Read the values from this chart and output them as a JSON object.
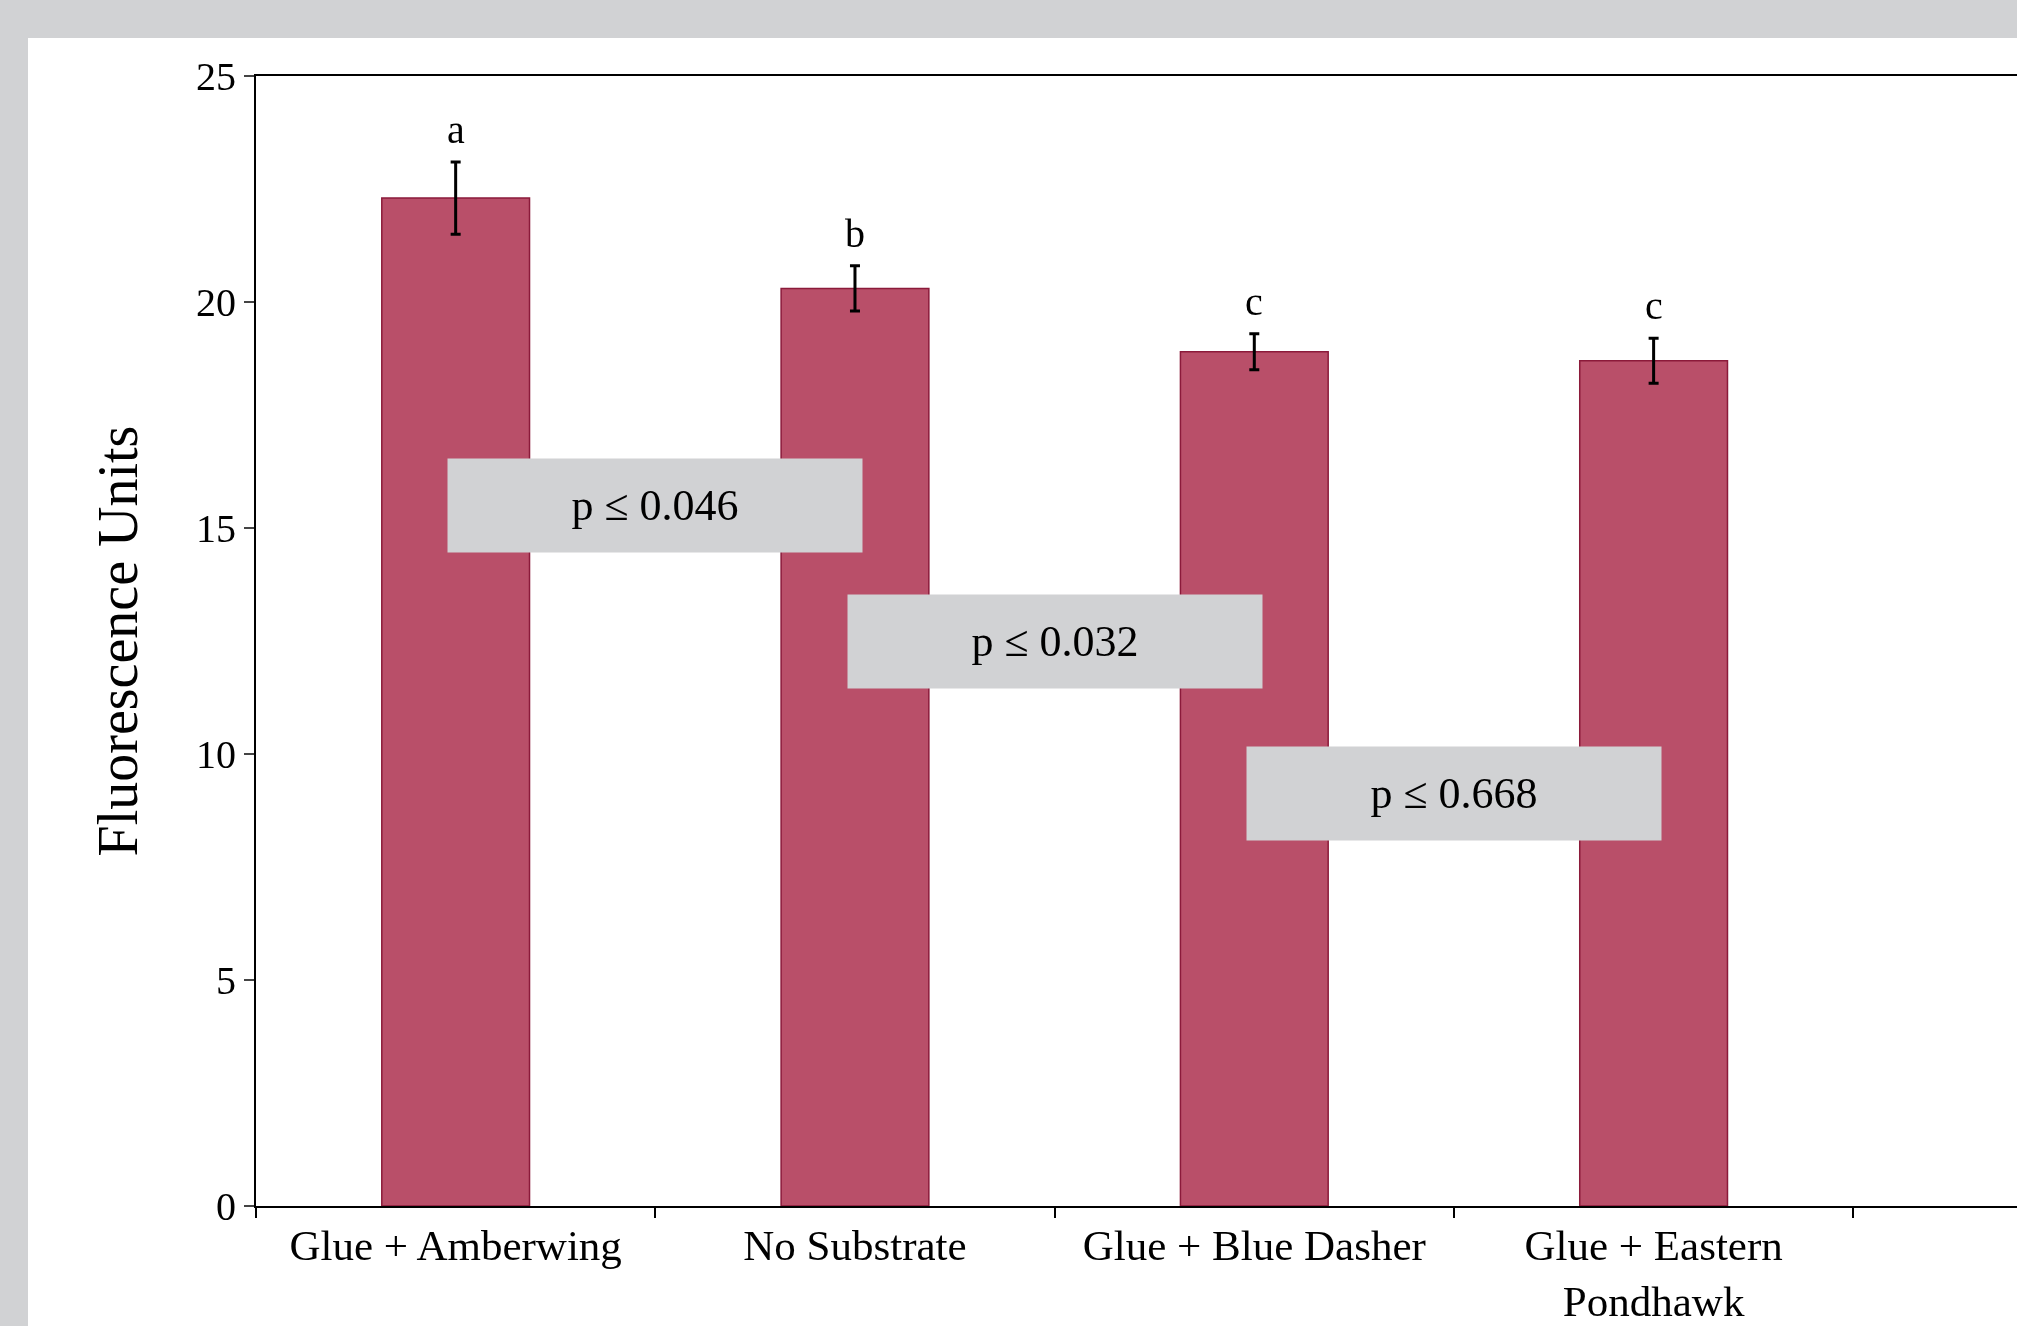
{
  "chart_data": {
    "type": "bar",
    "ylabel": "Fluorescence Units",
    "categories": [
      "Glue + Amberwing",
      "No Substrate",
      "Glue + Blue Dasher",
      "Glue + Eastern Pondhawk"
    ],
    "values": [
      22.3,
      20.3,
      18.9,
      18.7
    ],
    "errors": [
      0.8,
      0.5,
      0.4,
      0.5
    ],
    "color": "#b94f69",
    "ylim": [
      0,
      25
    ],
    "yticks": [
      0,
      5,
      10,
      15,
      20,
      25
    ],
    "grid": false,
    "annotations": [
      "a",
      "b",
      "c",
      "c",
      "p ≤ 0.046",
      "p ≤ 0.032",
      "p ≤ 0.668"
    ]
  }
}
